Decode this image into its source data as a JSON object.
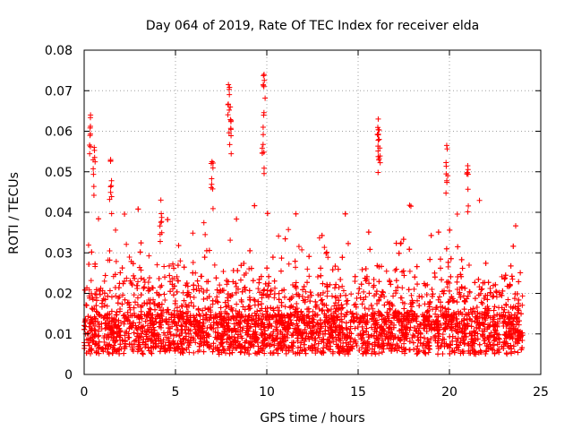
{
  "chart_data": {
    "type": "scatter",
    "title": "Day 064 of 2019, Rate Of TEC Index for receiver elda",
    "xlabel": "GPS time / hours",
    "ylabel": "ROTI / TECUs",
    "xlim": [
      0,
      25
    ],
    "ylim": [
      0,
      0.08
    ],
    "x_ticks": [
      0,
      5,
      10,
      15,
      20,
      25
    ],
    "x_tick_labels": [
      "0",
      "5",
      "10",
      "15",
      "20",
      "25"
    ],
    "y_ticks": [
      0,
      0.01,
      0.02,
      0.03,
      0.04,
      0.05,
      0.06,
      0.07,
      0.08
    ],
    "y_tick_labels": [
      "0",
      "0.01",
      "0.02",
      "0.03",
      "0.04",
      "0.05",
      "0.06",
      "0.07",
      "0.08"
    ],
    "grid": true,
    "marker": "+",
    "series": [
      {
        "name": "ROTI",
        "color": "#ff0000",
        "x_range": [
          0,
          24
        ],
        "baseline_band": [
          0.005,
          0.015
        ],
        "notable_points": [
          {
            "x": 0.35,
            "y": 0.064
          },
          {
            "x": 0.55,
            "y": 0.056
          },
          {
            "x": 1.45,
            "y": 0.053
          },
          {
            "x": 4.2,
            "y": 0.043
          },
          {
            "x": 7.0,
            "y": 0.0525
          },
          {
            "x": 7.9,
            "y": 0.0715
          },
          {
            "x": 8.0,
            "y": 0.066
          },
          {
            "x": 9.85,
            "y": 0.074
          },
          {
            "x": 9.8,
            "y": 0.061
          },
          {
            "x": 16.1,
            "y": 0.063
          },
          {
            "x": 16.15,
            "y": 0.058
          },
          {
            "x": 19.85,
            "y": 0.0565
          },
          {
            "x": 21.0,
            "y": 0.0515
          }
        ]
      }
    ]
  }
}
